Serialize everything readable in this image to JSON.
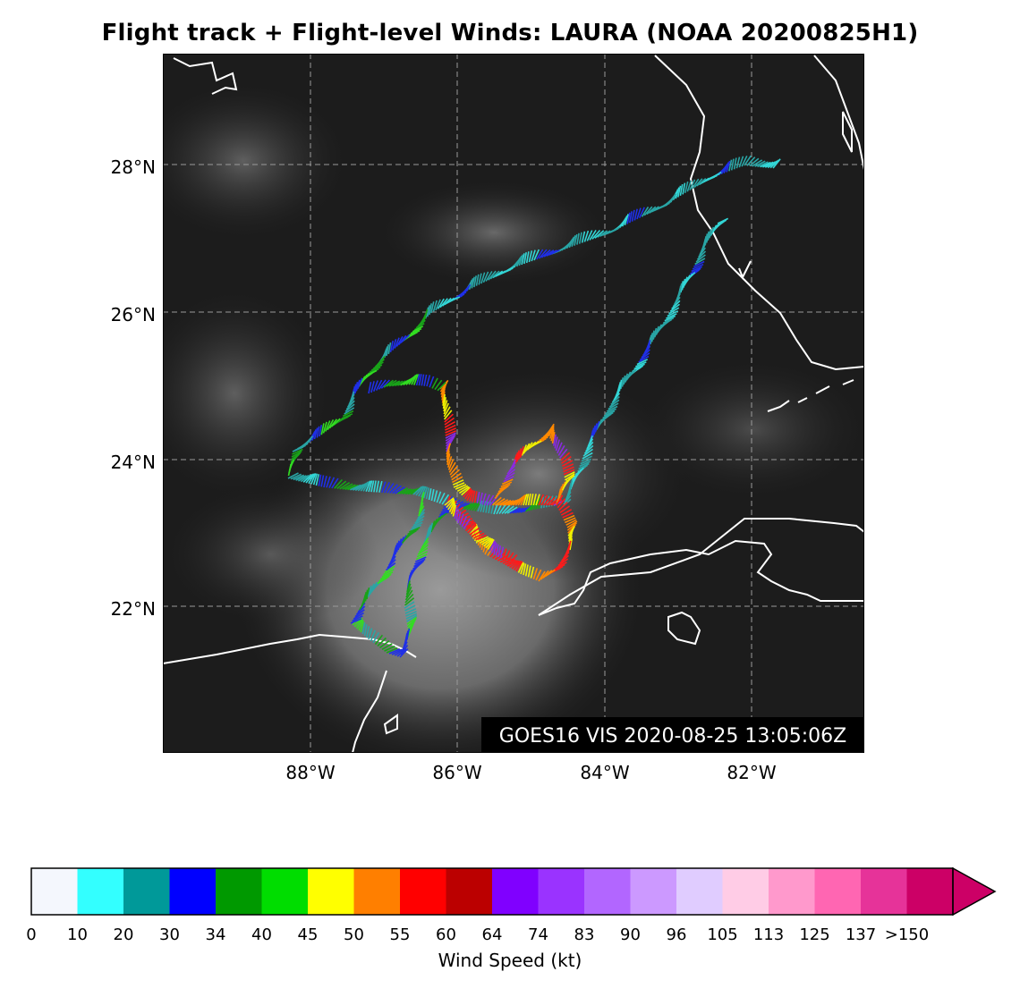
{
  "title": "Flight track + Flight-level Winds: LAURA (NOAA 20200825H1)",
  "stamp": "GOES16 VIS 2020-08-25 13:05:06Z",
  "lat_labels": [
    "28°N",
    "26°N",
    "24°N",
    "22°N"
  ],
  "lon_labels": [
    "88°W",
    "86°W",
    "84°W",
    "82°W"
  ],
  "colorbar": {
    "label": "Wind Speed (kt)",
    "ticks": [
      "0",
      "10",
      "20",
      "30",
      "34",
      "40",
      "45",
      "50",
      "55",
      "60",
      "64",
      "74",
      "83",
      "90",
      "96",
      "105",
      "113",
      "125",
      "137",
      ">150"
    ],
    "colors": [
      "#f4f7fd",
      "#33ffff",
      "#009999",
      "#0000ff",
      "#009900",
      "#00dd00",
      "#ffff00",
      "#ff7f00",
      "#ff0000",
      "#bb0000",
      "#8000ff",
      "#9a33ff",
      "#b266ff",
      "#cc99ff",
      "#e0ccff",
      "#ffcce6",
      "#ff99cc",
      "#ff66b2",
      "#e63399",
      "#cc0066"
    ],
    "extend_color": "#cc0066"
  },
  "track_colors": {
    "light": "#33d6d6",
    "teal": "#29a5a5",
    "blue": "#1f2fe8",
    "green": "#19a319",
    "lime": "#33dd22",
    "yellow": "#f0f000",
    "orange": "#ff8800",
    "red": "#ff1a1a",
    "purple": "#8a2be2"
  }
}
